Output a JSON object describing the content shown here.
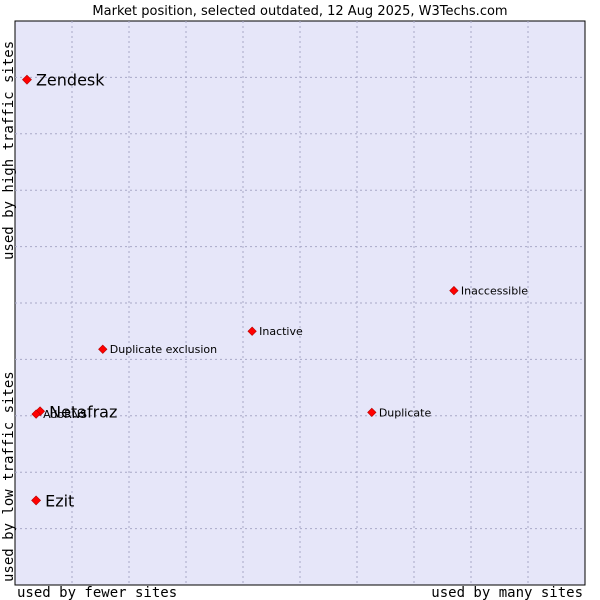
{
  "chart_data": {
    "type": "scatter",
    "title": "Market position, selected outdated, 12 Aug 2025, W3Techs.com",
    "xlabel_left": "used by fewer sites",
    "xlabel_right": "used by many sites",
    "ylabel_bottom": "used by low traffic sites",
    "ylabel_top": "used by high traffic sites",
    "xlim": [
      0,
      100
    ],
    "ylim": [
      0,
      100
    ],
    "grid": true,
    "points": [
      {
        "label": "Zendesk",
        "x": 2.1,
        "y": 89.6,
        "size": "large"
      },
      {
        "label": "Inaccessible",
        "x": 77.0,
        "y": 52.2,
        "size": "small"
      },
      {
        "label": "Inactive",
        "x": 41.6,
        "y": 45.0,
        "size": "small"
      },
      {
        "label": "Duplicate exclusion",
        "x": 15.4,
        "y": 41.8,
        "size": "small"
      },
      {
        "label": "Netafraz",
        "x": 4.4,
        "y": 30.8,
        "size": "large"
      },
      {
        "label": "AdoRNS",
        "x": 3.7,
        "y": 30.3,
        "size": "small"
      },
      {
        "label": "Duplicate",
        "x": 62.6,
        "y": 30.6,
        "size": "small"
      },
      {
        "label": "Ezit",
        "x": 3.7,
        "y": 15.0,
        "size": "large"
      }
    ]
  },
  "colors": {
    "plot_bg": "#e6e6f9",
    "grid": "#a8a8c8",
    "marker": "#ff0000",
    "marker_stroke": "#b40000"
  }
}
